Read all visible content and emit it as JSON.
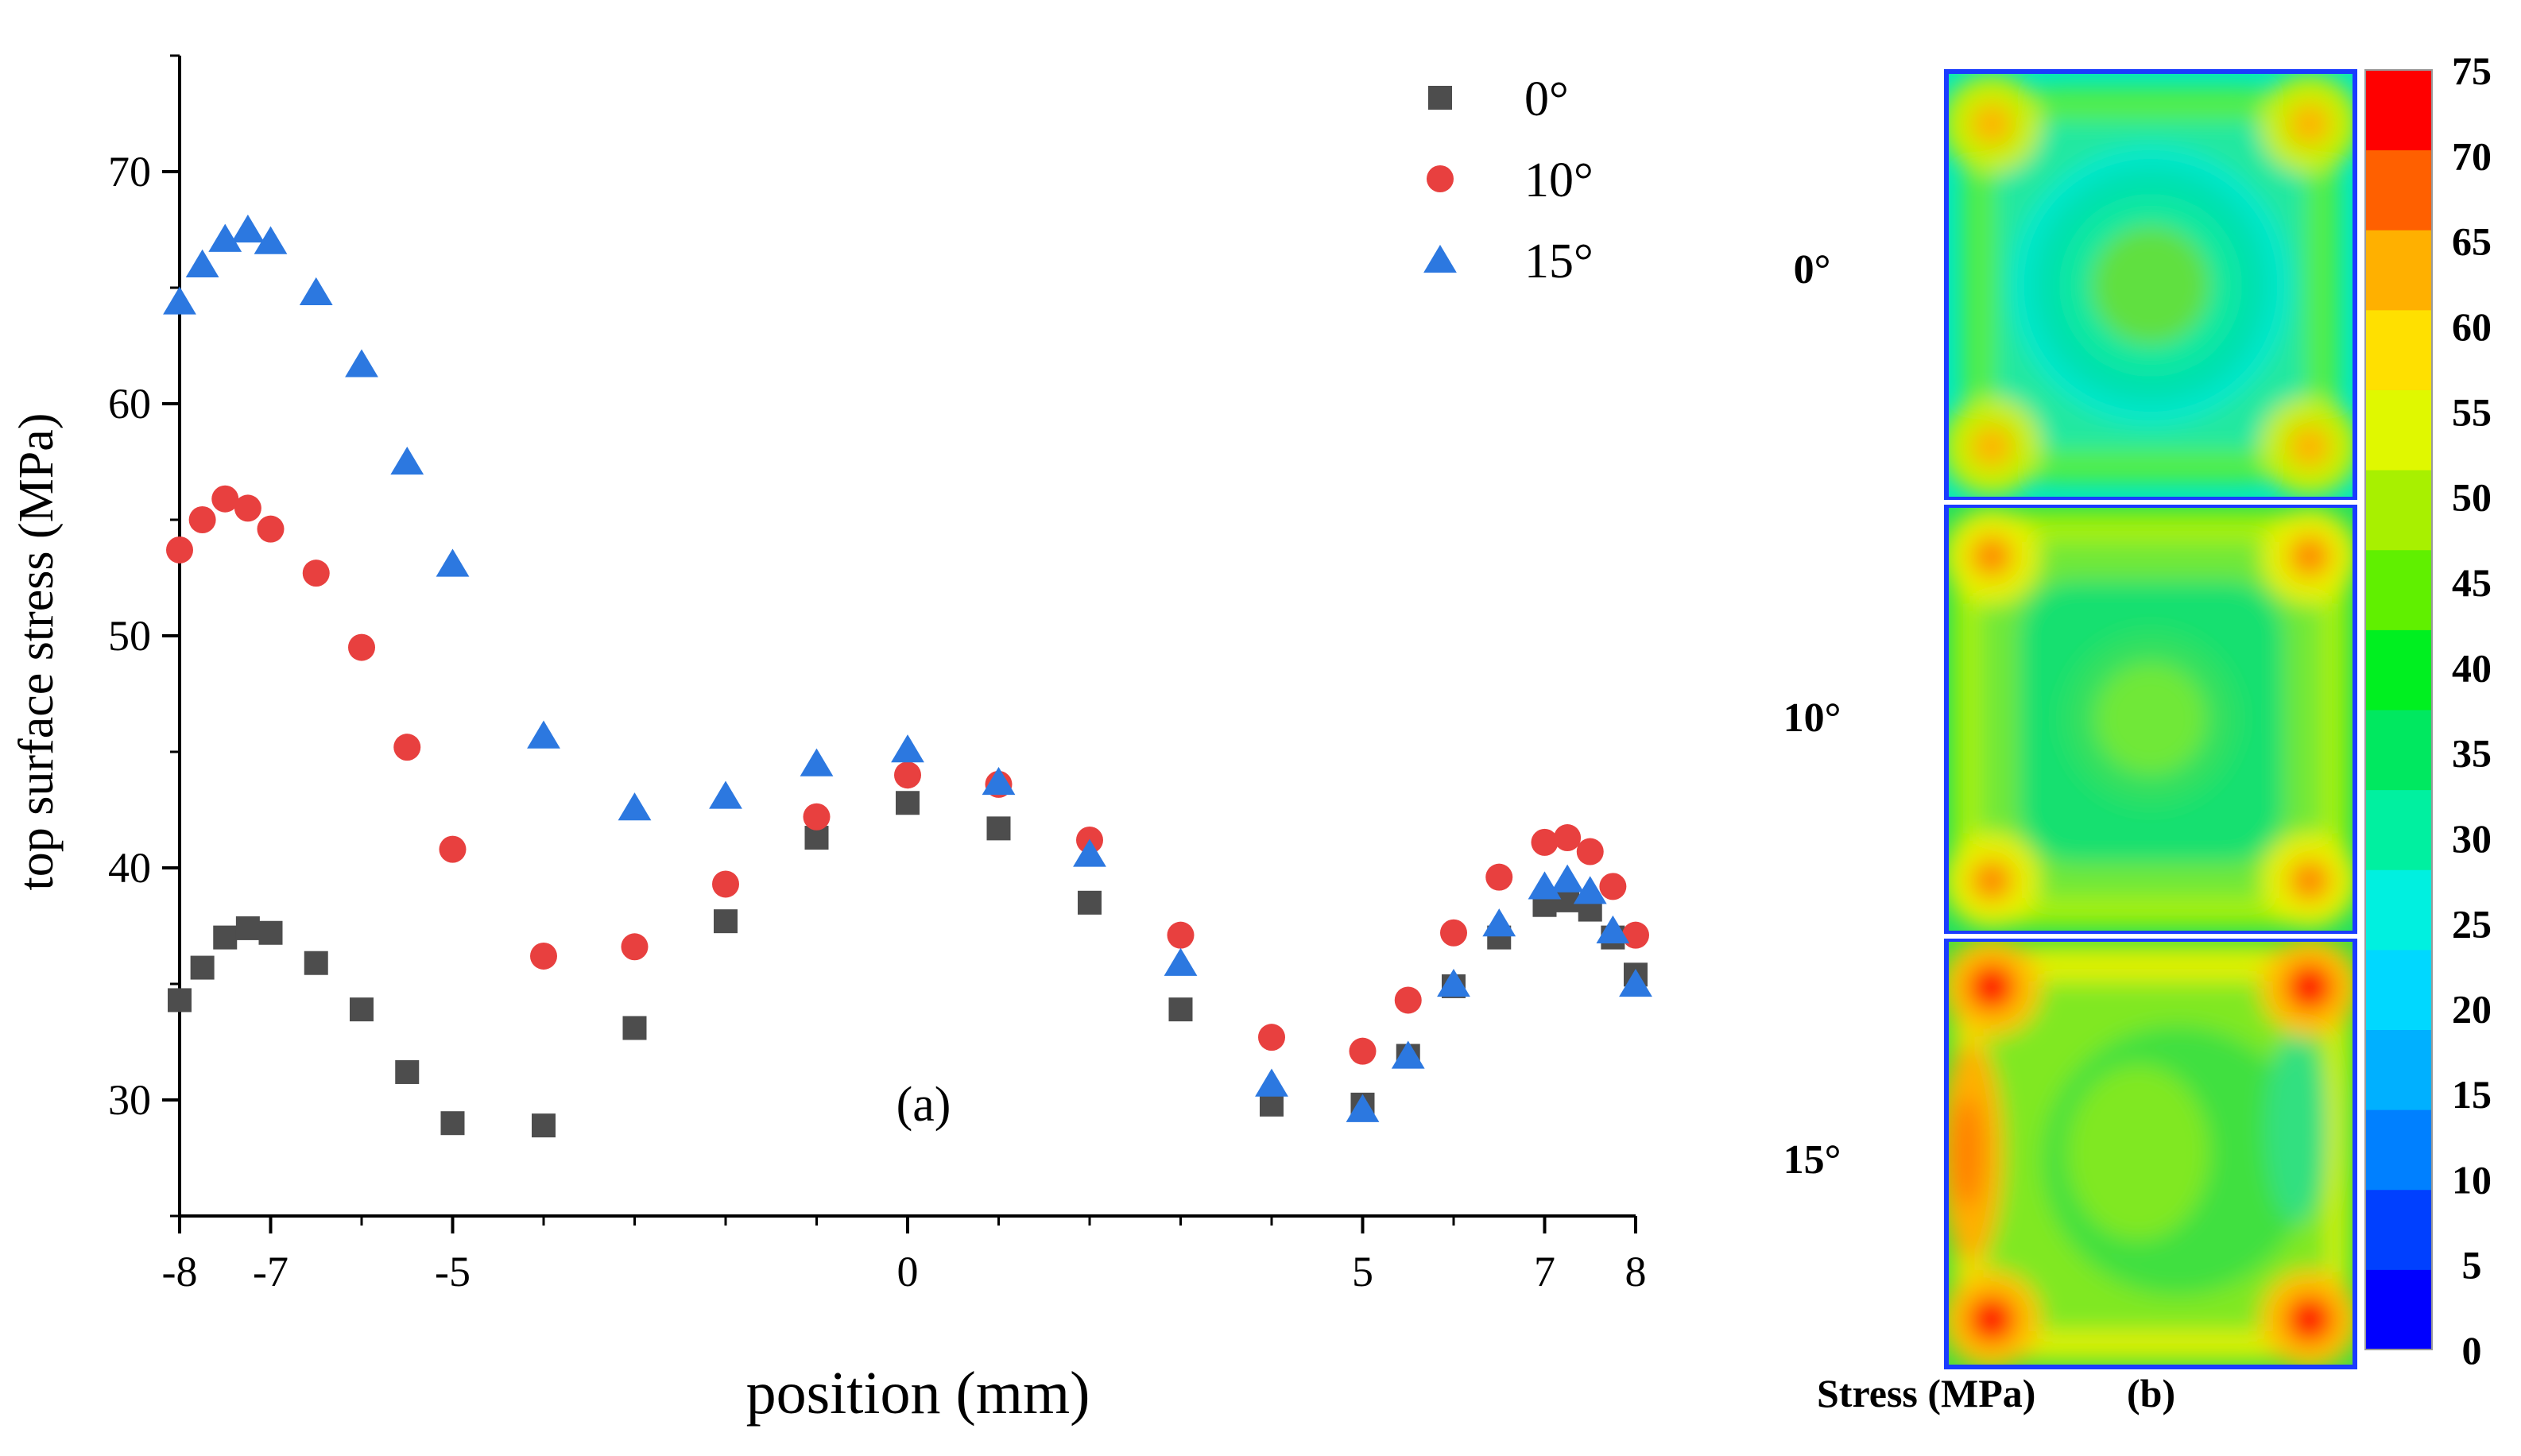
{
  "chart_data": [
    {
      "type": "scatter",
      "panel_label": "(a)",
      "xlabel": "position (mm)",
      "ylabel": "top surface stress (MPa)",
      "xlim": [
        -8,
        8
      ],
      "ylim": [
        25,
        75
      ],
      "xticks": [
        -8,
        -7,
        -5,
        0,
        5,
        7,
        8
      ],
      "xtick_labels": [
        "-8",
        "-7",
        "-5",
        "0",
        "5",
        "7",
        "8"
      ],
      "xminor": [
        -6,
        -4,
        -3,
        -2,
        -1,
        1,
        2,
        3,
        4,
        6
      ],
      "yticks": [
        30,
        40,
        50,
        60,
        70
      ],
      "ytick_labels": [
        "30",
        "40",
        "50",
        "60",
        "70"
      ],
      "legend_position": "top-right",
      "series": [
        {
          "name": "0°",
          "marker": "square",
          "color": "#4d4d4d",
          "points": [
            [
              -8,
              34.3
            ],
            [
              -7.75,
              35.7
            ],
            [
              -7.5,
              37.0
            ],
            [
              -7.25,
              37.4
            ],
            [
              -7,
              37.2
            ],
            [
              -6.5,
              35.9
            ],
            [
              -6,
              33.9
            ],
            [
              -5.5,
              31.2
            ],
            [
              -5,
              29.0
            ],
            [
              -4,
              28.9
            ],
            [
              -3,
              33.1
            ],
            [
              -2,
              37.7
            ],
            [
              -1,
              41.3
            ],
            [
              0,
              42.8
            ],
            [
              1,
              41.7
            ],
            [
              2,
              38.5
            ],
            [
              3,
              33.9
            ],
            [
              4,
              29.8
            ],
            [
              5,
              29.8
            ],
            [
              5.5,
              31.9
            ],
            [
              6,
              34.9
            ],
            [
              6.5,
              37.0
            ],
            [
              7,
              38.4
            ],
            [
              7.25,
              38.6
            ],
            [
              7.5,
              38.2
            ],
            [
              7.75,
              37.0
            ],
            [
              8,
              35.4
            ]
          ]
        },
        {
          "name": "10°",
          "marker": "circle",
          "color": "#e8403f",
          "points": [
            [
              -8,
              53.7
            ],
            [
              -7.75,
              55.0
            ],
            [
              -7.5,
              55.9
            ],
            [
              -7.25,
              55.5
            ],
            [
              -7,
              54.6
            ],
            [
              -6.5,
              52.7
            ],
            [
              -6,
              49.5
            ],
            [
              -5.5,
              45.2
            ],
            [
              -5,
              40.8
            ],
            [
              -4,
              36.2
            ],
            [
              -3,
              36.6
            ],
            [
              -2,
              39.3
            ],
            [
              -1,
              42.2
            ],
            [
              0,
              44.0
            ],
            [
              1,
              43.6
            ],
            [
              2,
              41.2
            ],
            [
              3,
              37.1
            ],
            [
              4,
              32.7
            ],
            [
              5,
              32.1
            ],
            [
              5.5,
              34.3
            ],
            [
              6,
              37.2
            ],
            [
              6.5,
              39.6
            ],
            [
              7,
              41.1
            ],
            [
              7.25,
              41.3
            ],
            [
              7.5,
              40.7
            ],
            [
              7.75,
              39.2
            ],
            [
              8,
              37.1
            ]
          ]
        },
        {
          "name": "15°",
          "marker": "triangle",
          "color": "#2c78e0",
          "points": [
            [
              -8,
              64.4
            ],
            [
              -7.75,
              66.0
            ],
            [
              -7.5,
              67.1
            ],
            [
              -7.25,
              67.5
            ],
            [
              -7,
              67.0
            ],
            [
              -6.5,
              64.8
            ],
            [
              -6,
              61.7
            ],
            [
              -5.5,
              57.5
            ],
            [
              -5,
              53.1
            ],
            [
              -4,
              45.7
            ],
            [
              -3,
              42.6
            ],
            [
              -2,
              43.1
            ],
            [
              -1,
              44.5
            ],
            [
              0,
              45.1
            ],
            [
              1,
              43.7
            ],
            [
              2,
              40.6
            ],
            [
              3,
              35.9
            ],
            [
              4,
              30.7
            ],
            [
              5,
              29.6
            ],
            [
              5.5,
              31.9
            ],
            [
              6,
              35.0
            ],
            [
              6.5,
              37.6
            ],
            [
              7,
              39.2
            ],
            [
              7.25,
              39.5
            ],
            [
              7.5,
              39.0
            ],
            [
              7.75,
              37.3
            ],
            [
              8,
              35.0
            ]
          ]
        }
      ]
    },
    {
      "type": "heatmap",
      "panel_label": "(b)",
      "title": "Stress (MPa)",
      "rows": [
        {
          "label": "0°",
          "description": "circular ring pattern, hot corners"
        },
        {
          "label": "10°",
          "description": "squarish ring pattern, hotter corners"
        },
        {
          "label": "15°",
          "description": "asymmetric pattern, red corners, hot left edge"
        }
      ],
      "colorbar": {
        "min": 0,
        "max": 75,
        "step": 5,
        "tick_labels": [
          "75",
          "70",
          "65",
          "60",
          "55",
          "50",
          "45",
          "40",
          "35",
          "30",
          "25",
          "20",
          "15",
          "10",
          "5",
          "0"
        ],
        "colors": [
          "#0000ff",
          "#0040ff",
          "#0080ff",
          "#00b0ff",
          "#00d8ff",
          "#00f0e0",
          "#00f0a0",
          "#00e860",
          "#00f020",
          "#60f000",
          "#a8f000",
          "#e0f800",
          "#ffe000",
          "#ffb000",
          "#ff6000",
          "#ff0000"
        ]
      }
    }
  ]
}
